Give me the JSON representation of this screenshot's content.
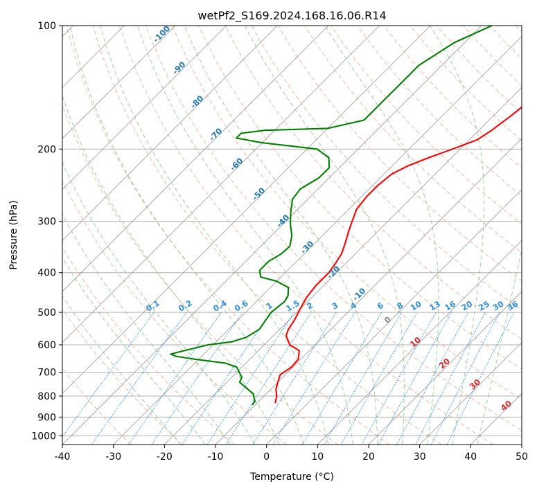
{
  "chart_data": {
    "type": "skew-t",
    "title": "wetPf2_S169.2024.168.16.06.R14",
    "xlabel": "Temperature (°C)",
    "ylabel": "Pressure (hPa)",
    "xlim": [
      -40,
      50
    ],
    "ylim": [
      1050,
      100
    ],
    "y_scale": "log",
    "grid": true,
    "x_ticks": [
      -40,
      -30,
      -20,
      -10,
      0,
      10,
      20,
      30,
      40,
      50
    ],
    "y_ticks": [
      100,
      200,
      300,
      400,
      500,
      600,
      700,
      800,
      900,
      1000
    ],
    "colors": {
      "temperature": "#ff0000",
      "dewpoint": "#008000",
      "isotherm": "#999999",
      "dry_adiabat": "#e8a080",
      "moist_adiabat": "#88c888",
      "mixing_ratio": "#1e90ff",
      "iso_label": "#1f77b4",
      "rh_label": "#d62728"
    },
    "series": [
      {
        "name": "",
        "kind": "temperature",
        "points": [
          [
            -8.5,
            100
          ],
          [
            -9.5,
            105
          ],
          [
            -11,
            113
          ],
          [
            -12.2,
            122
          ],
          [
            -14,
            135
          ],
          [
            -15.7,
            150
          ],
          [
            -16.5,
            165
          ],
          [
            -17.5,
            180
          ],
          [
            -18.5,
            190
          ],
          [
            -21.5,
            200
          ],
          [
            -24.5,
            210
          ],
          [
            -27,
            220
          ],
          [
            -28.5,
            230
          ],
          [
            -29,
            245
          ],
          [
            -29,
            260
          ],
          [
            -28.5,
            280
          ],
          [
            -27,
            300
          ],
          [
            -25.5,
            320
          ],
          [
            -24,
            340
          ],
          [
            -22.7,
            360
          ],
          [
            -22,
            380
          ],
          [
            -21.5,
            400
          ],
          [
            -21.5,
            430
          ],
          [
            -21,
            460
          ],
          [
            -20,
            490
          ],
          [
            -19,
            520
          ],
          [
            -18.3,
            550
          ],
          [
            -17.5,
            570
          ],
          [
            -15,
            600
          ],
          [
            -12,
            620
          ],
          [
            -10.5,
            650
          ],
          [
            -10.3,
            680
          ],
          [
            -11,
            710
          ],
          [
            -10,
            740
          ],
          [
            -9,
            770
          ],
          [
            -7.5,
            800
          ],
          [
            -6.5,
            830
          ]
        ]
      },
      {
        "name": "",
        "kind": "dewpoint",
        "points": [
          [
            -38,
            100
          ],
          [
            -42,
            110
          ],
          [
            -44.5,
            125
          ],
          [
            -44.5,
            140
          ],
          [
            -44.5,
            160
          ],
          [
            -44.5,
            170
          ],
          [
            -50,
            178
          ],
          [
            -62,
            180
          ],
          [
            -66,
            183
          ],
          [
            -66,
            188
          ],
          [
            -60,
            193
          ],
          [
            -48,
            200
          ],
          [
            -44,
            210
          ],
          [
            -42,
            222
          ],
          [
            -42,
            235
          ],
          [
            -43.5,
            250
          ],
          [
            -43,
            265
          ],
          [
            -40.8,
            285
          ],
          [
            -38.5,
            305
          ],
          [
            -36,
            325
          ],
          [
            -34.3,
            345
          ],
          [
            -34.5,
            360
          ],
          [
            -35.5,
            375
          ],
          [
            -35.5,
            395
          ],
          [
            -34,
            410
          ],
          [
            -30,
            420
          ],
          [
            -26.5,
            435
          ],
          [
            -25,
            455
          ],
          [
            -24.5,
            470
          ],
          [
            -25,
            500
          ],
          [
            -24.5,
            525
          ],
          [
            -24,
            550
          ],
          [
            -25,
            575
          ],
          [
            -27,
            590
          ],
          [
            -31,
            600
          ],
          [
            -34.5,
            620
          ],
          [
            -36.5,
            632
          ],
          [
            -35,
            640
          ],
          [
            -31,
            650
          ],
          [
            -24,
            665
          ],
          [
            -21,
            680
          ],
          [
            -19.5,
            700
          ],
          [
            -18,
            720
          ],
          [
            -17.5,
            740
          ],
          [
            -16,
            755
          ],
          [
            -14,
            775
          ],
          [
            -12.5,
            790
          ],
          [
            -11.5,
            810
          ],
          [
            -10.7,
            825
          ],
          [
            -10.6,
            838
          ]
        ]
      }
    ],
    "isotherm_labels": [
      "-100",
      "-90",
      "-80",
      "-70",
      "-60",
      "-50",
      "-40",
      "-30",
      "-20",
      "-10"
    ],
    "mixing_ratio_labels": [
      "0.1",
      "0.2",
      "0.4",
      "0.6",
      "1",
      "1.5",
      "2",
      "3",
      "4",
      "6",
      "8",
      "10",
      "13",
      "16",
      "20",
      "25",
      "30",
      "36"
    ],
    "relative_humidity_labels": [
      "0",
      "10",
      "20",
      "30",
      "40"
    ]
  }
}
